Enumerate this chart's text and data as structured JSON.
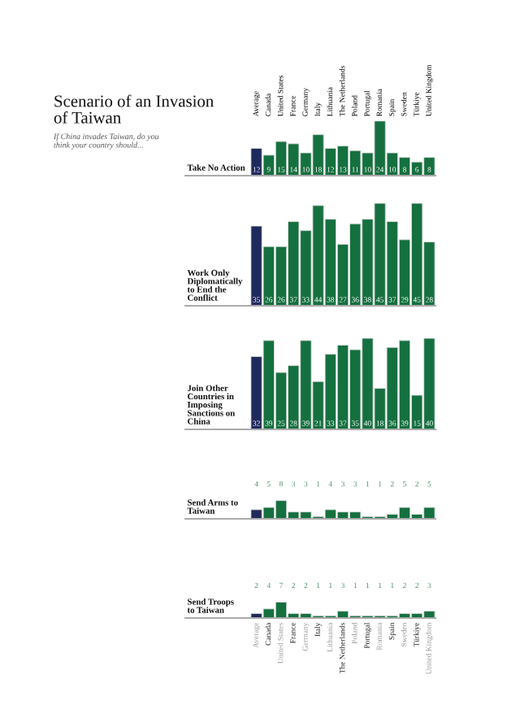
{
  "chart_data": [
    {
      "type": "other",
      "title": "Scenario of an Invasion\nof Taiwan",
      "subtitle": "If China invades Taiwan, do you\nthink your country should..."
    },
    {
      "type": "bar",
      "ylabel": "Take No Action",
      "categories": [
        "Average",
        "Canada",
        "United States",
        "France",
        "Germany",
        "Italy",
        "Lithuania",
        "The Netherlands",
        "Poland",
        "Portugal",
        "Romania",
        "Spain",
        "Sweden",
        "Türkiye",
        "United Kingdom"
      ],
      "values": [
        12,
        9,
        15,
        14,
        10,
        18,
        12,
        13,
        11,
        10,
        24,
        10,
        8,
        6,
        8
      ],
      "colors": [
        "#1f2a5c",
        "#15703f",
        "#15703f",
        "#15703f",
        "#15703f",
        "#15703f",
        "#15703f",
        "#15703f",
        "#15703f",
        "#15703f",
        "#15703f",
        "#15703f",
        "#15703f",
        "#15703f",
        "#15703f"
      ],
      "data_labels": true
    },
    {
      "type": "bar",
      "ylabel": "Work Only\nDiplomatically\nto End the\nConflict",
      "categories": [
        null,
        null,
        null,
        null,
        null,
        null,
        null,
        null,
        null,
        null,
        null,
        null,
        null,
        null,
        null
      ],
      "values": [
        35,
        26,
        26,
        37,
        33,
        44,
        38,
        27,
        36,
        38,
        45,
        37,
        29,
        45,
        28
      ],
      "colors": [
        "#1f2a5c",
        "#15703f",
        "#15703f",
        "#15703f",
        "#15703f",
        "#15703f",
        "#15703f",
        "#15703f",
        "#15703f",
        "#15703f",
        "#15703f",
        "#15703f",
        "#15703f",
        "#15703f",
        "#15703f"
      ],
      "data_labels": true
    },
    {
      "type": "bar",
      "ylabel": "Join Other\nCountries in\nImposing\nSanctions on\nChina",
      "categories": [
        null,
        null,
        null,
        null,
        null,
        null,
        null,
        null,
        null,
        null,
        null,
        null,
        null,
        null,
        null
      ],
      "values": [
        32,
        39,
        25,
        28,
        39,
        21,
        33,
        37,
        35,
        40,
        18,
        36,
        39,
        15,
        40
      ],
      "colors": [
        "#1f2a5c",
        "#15703f",
        "#15703f",
        "#15703f",
        "#15703f",
        "#15703f",
        "#15703f",
        "#15703f",
        "#15703f",
        "#15703f",
        "#15703f",
        "#15703f",
        "#15703f",
        "#15703f",
        "#15703f"
      ],
      "data_labels": true
    },
    {
      "type": "bar",
      "ylabel": "Send Arms to\nTaiwan",
      "categories": [
        null,
        null,
        null,
        null,
        null,
        null,
        null,
        null,
        null,
        null,
        null,
        null,
        null,
        null,
        null
      ],
      "values": [
        4,
        5,
        8,
        3,
        3,
        1,
        4,
        3,
        3,
        1,
        1,
        2,
        5,
        2,
        5
      ],
      "colors": [
        "#1f2a5c",
        "#15703f",
        "#15703f",
        "#15703f",
        "#15703f",
        "#15703f",
        "#15703f",
        "#15703f",
        "#15703f",
        "#15703f",
        "#15703f",
        "#15703f",
        "#15703f",
        "#15703f",
        "#15703f"
      ],
      "data_labels": true
    },
    {
      "type": "bar",
      "ylabel": "Send Troops\nto Taiwan",
      "categories": [
        "Average",
        "Canada",
        "United States",
        "France",
        "Germany",
        "Italy",
        "Lithuania",
        "The Netherlands",
        "Poland",
        "Portugal",
        "Romania",
        "Spain",
        "Sweden",
        "Türkiye",
        "United Kingdom"
      ],
      "values": [
        2,
        4,
        7,
        2,
        2,
        1,
        1,
        3,
        1,
        1,
        1,
        1,
        2,
        2,
        3
      ],
      "colors": [
        "#1f2a5c",
        "#15703f",
        "#15703f",
        "#15703f",
        "#15703f",
        "#15703f",
        "#15703f",
        "#15703f",
        "#15703f",
        "#15703f",
        "#15703f",
        "#15703f",
        "#15703f",
        "#15703f",
        "#15703f"
      ],
      "data_labels": true
    }
  ]
}
